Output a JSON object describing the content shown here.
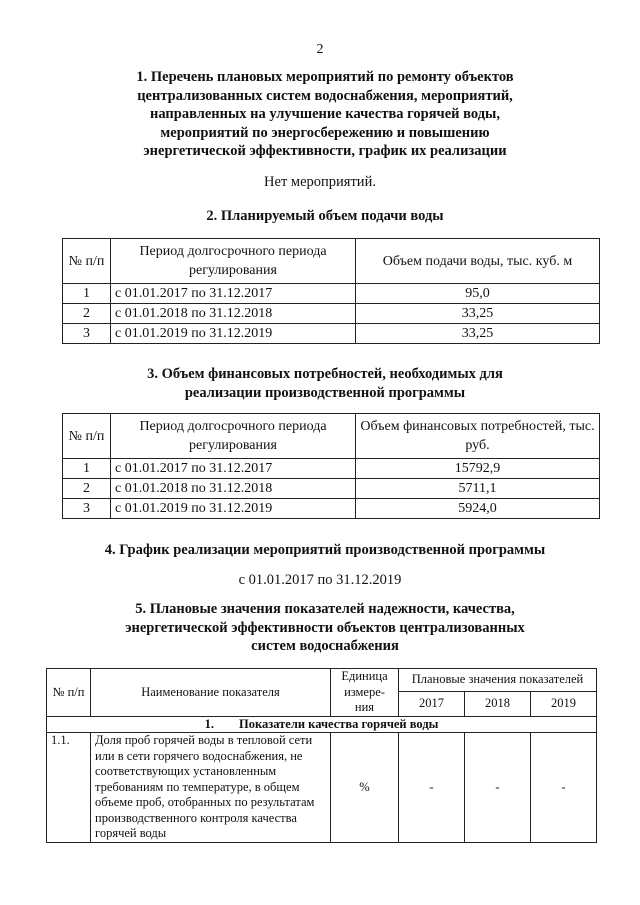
{
  "page_number": "2",
  "section1": {
    "title_lines": [
      "1. Перечень плановых мероприятий по ремонту объектов",
      "централизованных систем водоснабжения, мероприятий,",
      "направленных на улучшение качества горячей воды,",
      "мероприятий по энергосбережению и повышению",
      "энергетической эффективности, график их реализации"
    ],
    "text": "Нет мероприятий."
  },
  "section2": {
    "title": "2. Планируемый объем подачи воды",
    "headers": [
      "№ п/п",
      "Период долгосрочного периода регулирования",
      "Объем подачи воды, тыс. куб. м"
    ],
    "rows": [
      [
        "1",
        "с 01.01.2017 по 31.12.2017",
        "95,0"
      ],
      [
        "2",
        "с 01.01.2018 по 31.12.2018",
        "33,25"
      ],
      [
        "3",
        "с 01.01.2019 по 31.12.2019",
        "33,25"
      ]
    ]
  },
  "section3": {
    "title_lines": [
      "3. Объем финансовых потребностей, необходимых для",
      "реализации производственной программы"
    ],
    "headers": [
      "№ п/п",
      "Период долгосрочного периода регулирования",
      "Объем финансовых потребностей, тыс. руб."
    ],
    "rows": [
      [
        "1",
        "с 01.01.2017 по 31.12.2017",
        "15792,9"
      ],
      [
        "2",
        "с 01.01.2018 по 31.12.2018",
        "5711,1"
      ],
      [
        "3",
        "с 01.01.2019 по 31.12.2019",
        "5924,0"
      ]
    ]
  },
  "section4": {
    "title": "4. График реализации мероприятий производственной программы",
    "text": "с 01.01.2017 по 31.12.2019"
  },
  "section5": {
    "title_lines": [
      "5. Плановые значения показателей надежности, качества,",
      "энергетической эффективности объектов централизованных",
      "систем водоснабжения"
    ],
    "headers": {
      "num": "№ п/п",
      "name": "Наименование показателя",
      "unit": "Единица измере-ния",
      "planned": "Плановые значения показателей",
      "years": [
        "2017",
        "2018",
        "2019"
      ]
    },
    "group": {
      "num": "1.",
      "title": "Показатели качества горячей воды"
    },
    "rows": [
      {
        "num": "1.1.",
        "name": "Доля проб горячей воды в тепловой сети или в сети горячего водоснабжения, не соответствующих установленным требованиям по температуре, в общем объеме проб, отобранных по результатам производственного контроля качества горячей воды",
        "unit": "%",
        "values": [
          "-",
          "-",
          "-"
        ]
      }
    ]
  }
}
